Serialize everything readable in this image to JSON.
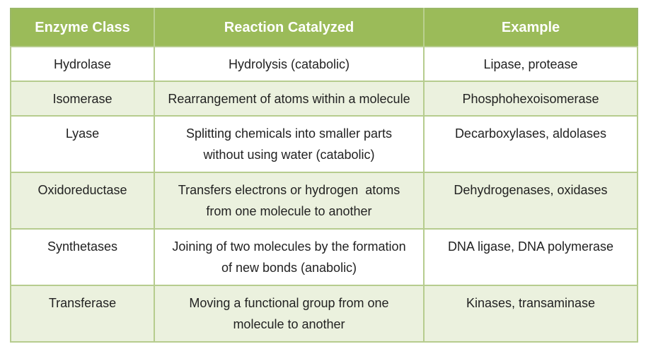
{
  "table": {
    "headers": [
      "Enzyme Class",
      "Reaction Catalyzed",
      "Example"
    ],
    "rows": [
      {
        "enzyme_class": "Hydrolase",
        "reaction_line1": "Hydrolysis (catabolic)",
        "reaction_line2": "",
        "example": "Lipase, protease"
      },
      {
        "enzyme_class": "Isomerase",
        "reaction_line1": "Rearrangement of atoms within a molecule",
        "reaction_line2": "",
        "example": "Phosphohexoisomerase"
      },
      {
        "enzyme_class": "Lyase",
        "reaction_line1": "Splitting chemicals into smaller parts",
        "reaction_line2": "without using water (catabolic)",
        "example": "Decarboxylases, aldolases"
      },
      {
        "enzyme_class": "Oxidoreductase",
        "reaction_line1": "Transfers electrons or hydrogen  atoms",
        "reaction_line2": "from one molecule to another",
        "example": "Dehydrogenases, oxidases"
      },
      {
        "enzyme_class": "Synthetases",
        "reaction_line1": "Joining of two molecules by the formation",
        "reaction_line2": "of new bonds (anabolic)",
        "example": "DNA ligase, DNA polymerase"
      },
      {
        "enzyme_class": "Transferase",
        "reaction_line1": "Moving a functional group from one",
        "reaction_line2": "molecule to another",
        "example": "Kinases, transaminase"
      }
    ]
  },
  "colors": {
    "header_background": "#9bbb59",
    "header_text": "#ffffff",
    "alt_row_background": "#ebf1de",
    "border": "#b6cc8e"
  }
}
